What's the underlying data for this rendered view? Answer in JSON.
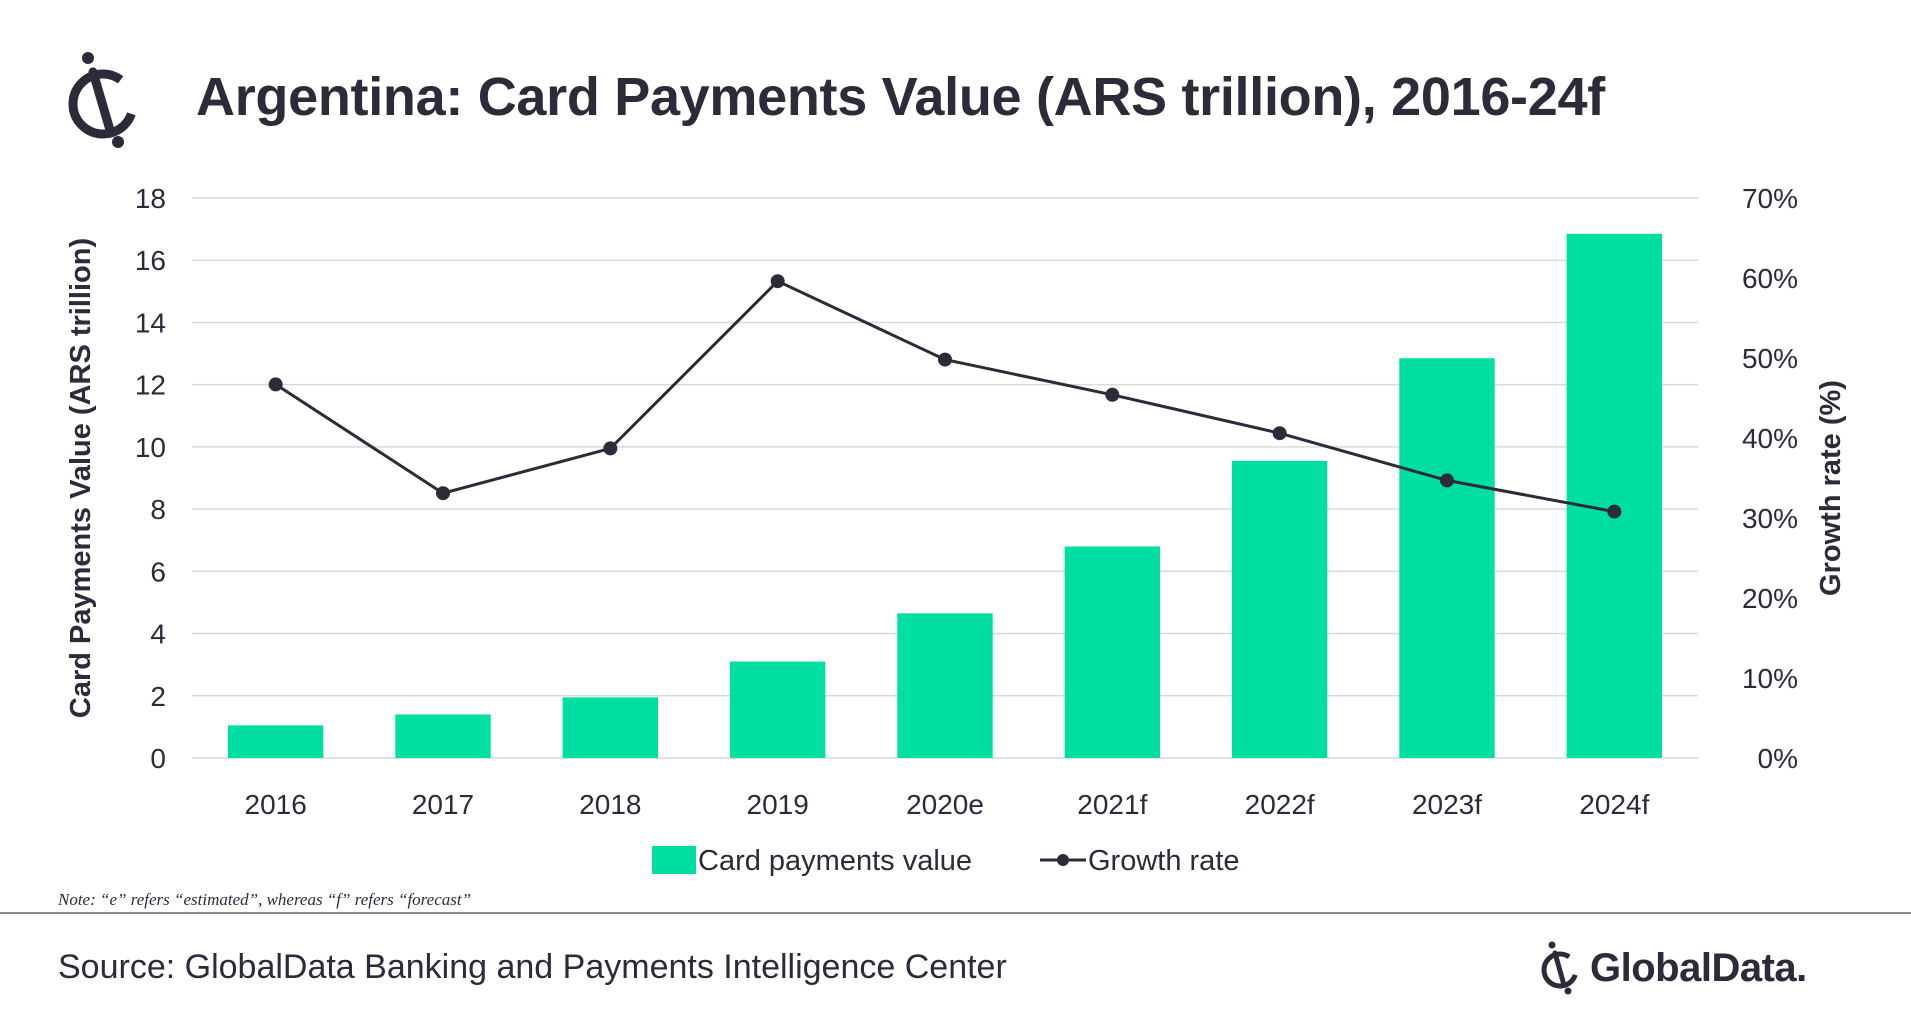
{
  "title": "Argentina: Card Payments Value (ARS trillion), 2016-24f",
  "note": "Note: “e” refers “estimated”, whereas “f” refers “forecast”",
  "source": "Source: GlobalData Banking and Payments Intelligence Center",
  "brand": {
    "name": "GlobalData.",
    "icon": "globaldata-logo-icon"
  },
  "colors": {
    "bar": "#00dfa2",
    "line": "#2b2b3a",
    "grid": "#d9d9d9",
    "text": "#2b2b3a"
  },
  "chart_data": {
    "type": "bar",
    "categories": [
      "2016",
      "2017",
      "2018",
      "2019",
      "2020e",
      "2021f",
      "2022f",
      "2023f",
      "2024f"
    ],
    "series": [
      {
        "name": "Card payments value",
        "type": "bar",
        "axis": "left",
        "values": [
          1.05,
          1.4,
          1.95,
          3.1,
          4.65,
          6.8,
          9.55,
          12.85,
          16.85
        ]
      },
      {
        "name": "Growth rate",
        "type": "line",
        "axis": "right",
        "values": [
          46.7,
          33.1,
          38.7,
          59.6,
          49.8,
          45.4,
          40.6,
          34.7,
          30.8
        ]
      }
    ],
    "ylabel": "Card Payments Value (ARS trillion)",
    "y2label": "Growth rate (%)",
    "ylim": [
      0,
      18
    ],
    "yticks": [
      0,
      2,
      4,
      6,
      8,
      10,
      12,
      14,
      16,
      18
    ],
    "y2lim": [
      0,
      70
    ],
    "y2ticks": [
      "0%",
      "10%",
      "20%",
      "30%",
      "40%",
      "50%",
      "60%",
      "70%"
    ],
    "grid": true,
    "legend_position": "bottom-center"
  }
}
